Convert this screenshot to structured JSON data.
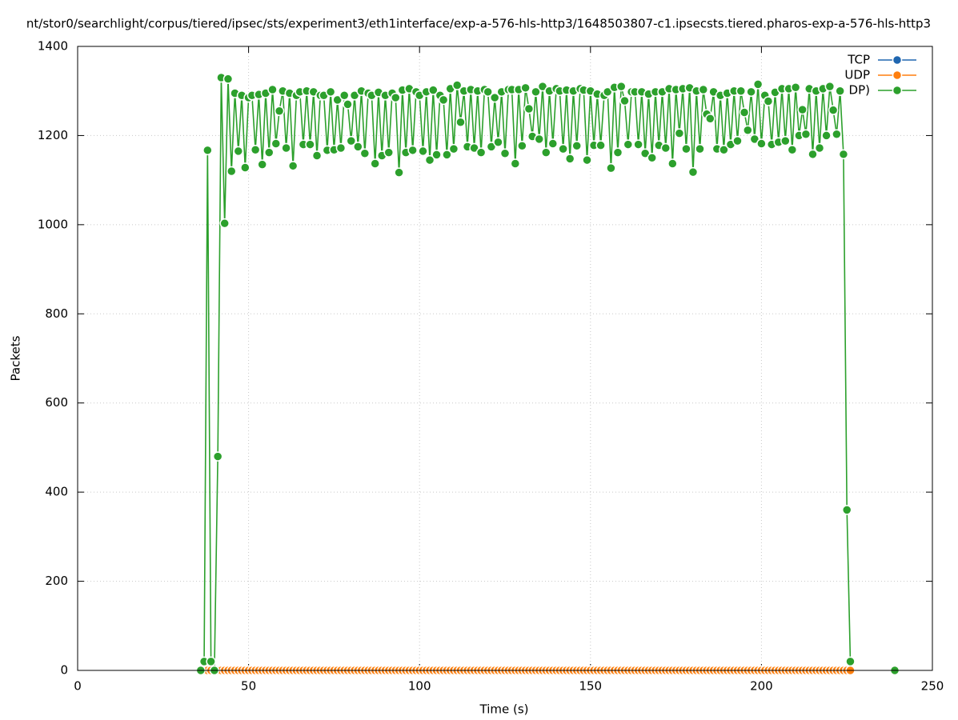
{
  "chart_data": {
    "type": "line",
    "title": "nt/stor0/searchlight/corpus/tiered/ipsec/sts/experiment3/eth1interface/exp-a-576-hls-http3/1648503807-c1.ipsecsts.tiered.pharos-exp-a-576-hls-http3",
    "x_label": "Time (s)",
    "y_label": "Packets",
    "xlim": [
      0,
      250
    ],
    "ylim": [
      0,
      1400
    ],
    "xticks": [
      0,
      50,
      100,
      150,
      200,
      250
    ],
    "yticks": [
      0,
      200,
      400,
      600,
      800,
      1000,
      1200,
      1400
    ],
    "grid": true,
    "legend": "top-right",
    "x": [
      36,
      37,
      38,
      39,
      40,
      41,
      42,
      43,
      44,
      45,
      46,
      47,
      48,
      49,
      50,
      51,
      52,
      53,
      54,
      55,
      56,
      57,
      58,
      59,
      60,
      61,
      62,
      63,
      64,
      65,
      66,
      67,
      68,
      69,
      70,
      71,
      72,
      73,
      74,
      75,
      76,
      77,
      78,
      79,
      80,
      81,
      82,
      83,
      84,
      85,
      86,
      87,
      88,
      89,
      90,
      91,
      92,
      93,
      94,
      95,
      96,
      97,
      98,
      99,
      100,
      101,
      102,
      103,
      104,
      105,
      106,
      107,
      108,
      109,
      110,
      111,
      112,
      113,
      114,
      115,
      116,
      117,
      118,
      119,
      120,
      121,
      122,
      123,
      124,
      125,
      126,
      127,
      128,
      129,
      130,
      131,
      132,
      133,
      134,
      135,
      136,
      137,
      138,
      139,
      140,
      141,
      142,
      143,
      144,
      145,
      146,
      147,
      148,
      149,
      150,
      151,
      152,
      153,
      154,
      155,
      156,
      157,
      158,
      159,
      160,
      161,
      162,
      163,
      164,
      165,
      166,
      167,
      168,
      169,
      170,
      171,
      172,
      173,
      174,
      175,
      176,
      177,
      178,
      179,
      180,
      181,
      182,
      183,
      184,
      185,
      186,
      187,
      188,
      189,
      190,
      191,
      192,
      193,
      194,
      195,
      196,
      197,
      198,
      199,
      200,
      201,
      202,
      203,
      204,
      205,
      206,
      207,
      208,
      209,
      210,
      211,
      212,
      213,
      214,
      215,
      216,
      217,
      218,
      219,
      220,
      221,
      222,
      223,
      224,
      225,
      226,
      227,
      239
    ],
    "series": [
      {
        "name": "TCP",
        "color": "#1f66b0",
        "values": [
          0,
          0,
          0,
          0,
          0,
          0,
          0,
          0,
          0,
          0,
          0,
          0,
          0,
          0,
          0,
          0,
          0,
          0,
          0,
          0,
          0,
          0,
          0,
          0,
          0,
          0,
          0,
          0,
          0,
          0,
          0,
          0,
          0,
          0,
          0,
          0,
          0,
          0,
          0,
          0,
          0,
          0,
          0,
          0,
          0,
          0,
          0,
          0,
          0,
          0,
          0,
          0,
          0,
          0,
          0,
          0,
          0,
          0,
          0,
          0,
          0,
          0,
          0,
          0,
          0,
          0,
          0,
          0,
          0,
          0,
          0,
          0,
          0,
          0,
          0,
          0,
          0,
          0,
          0,
          0,
          0,
          0,
          0,
          0,
          0,
          0,
          0,
          0,
          0,
          0,
          0,
          0,
          0,
          0,
          0,
          0,
          0,
          0,
          0,
          0,
          0,
          0,
          0,
          0,
          0,
          0,
          0,
          0,
          0,
          0,
          0,
          0,
          0,
          0,
          0,
          0,
          0,
          0,
          0,
          0,
          0,
          0,
          0,
          0,
          0,
          0,
          0,
          0,
          0,
          0,
          0,
          0,
          0,
          0,
          0,
          0,
          0,
          0,
          0,
          0,
          0,
          0,
          0,
          0,
          0,
          0,
          0,
          0,
          0,
          0,
          0,
          0,
          0,
          0,
          0,
          0,
          0,
          0,
          0,
          0,
          0,
          0,
          0,
          0,
          0,
          0,
          0,
          0,
          0,
          0,
          0,
          0,
          0,
          0,
          0,
          0,
          0,
          0,
          0,
          0,
          0,
          0,
          0,
          0,
          0,
          0,
          0,
          0,
          0,
          0,
          0,
          null,
          0
        ]
      },
      {
        "name": "UDP",
        "color": "#ff7f0e",
        "values": [
          0,
          0,
          0,
          0,
          0,
          0,
          0,
          0,
          0,
          0,
          0,
          0,
          0,
          0,
          0,
          0,
          0,
          0,
          0,
          0,
          0,
          0,
          0,
          0,
          0,
          0,
          0,
          0,
          0,
          0,
          0,
          0,
          0,
          0,
          0,
          0,
          0,
          0,
          0,
          0,
          0,
          0,
          0,
          0,
          0,
          0,
          0,
          0,
          0,
          0,
          0,
          0,
          0,
          0,
          0,
          0,
          0,
          0,
          0,
          0,
          0,
          0,
          0,
          0,
          0,
          0,
          0,
          0,
          0,
          0,
          0,
          0,
          0,
          0,
          0,
          0,
          0,
          0,
          0,
          0,
          0,
          0,
          0,
          0,
          0,
          0,
          0,
          0,
          0,
          0,
          0,
          0,
          0,
          0,
          0,
          0,
          0,
          0,
          0,
          0,
          0,
          0,
          0,
          0,
          0,
          0,
          0,
          0,
          0,
          0,
          0,
          0,
          0,
          0,
          0,
          0,
          0,
          0,
          0,
          0,
          0,
          0,
          0,
          0,
          0,
          0,
          0,
          0,
          0,
          0,
          0,
          0,
          0,
          0,
          0,
          0,
          0,
          0,
          0,
          0,
          0,
          0,
          0,
          0,
          0,
          0,
          0,
          0,
          0,
          0,
          0,
          0,
          0,
          0,
          0,
          0,
          0,
          0,
          0,
          0,
          0,
          0,
          0,
          0,
          0,
          0,
          0,
          0,
          0,
          0,
          0,
          0,
          0,
          0,
          0,
          0,
          0,
          0,
          0,
          0,
          0,
          0,
          0,
          0,
          0,
          0,
          0,
          0,
          0,
          0,
          0,
          null,
          0
        ]
      },
      {
        "name": "DP)",
        "color": "#2ca02c",
        "values": [
          0,
          20,
          1167,
          20,
          0,
          480,
          1330,
          1003,
          1327,
          1120,
          1295,
          1165,
          1290,
          1128,
          1285,
          1290,
          1168,
          1292,
          1135,
          1295,
          1162,
          1303,
          1182,
          1255,
          1300,
          1172,
          1295,
          1132,
          1290,
          1298,
          1180,
          1300,
          1180,
          1298,
          1155,
          1290,
          1290,
          1167,
          1298,
          1168,
          1280,
          1172,
          1290,
          1270,
          1188,
          1290,
          1175,
          1300,
          1160,
          1295,
          1290,
          1137,
          1297,
          1155,
          1290,
          1162,
          1295,
          1285,
          1117,
          1302,
          1162,
          1305,
          1167,
          1298,
          1290,
          1165,
          1298,
          1145,
          1302,
          1157,
          1290,
          1280,
          1157,
          1305,
          1170,
          1313,
          1230,
          1300,
          1175,
          1303,
          1172,
          1300,
          1162,
          1303,
          1298,
          1175,
          1285,
          1185,
          1298,
          1160,
          1303,
          1303,
          1137,
          1303,
          1177,
          1307,
          1260,
          1198,
          1298,
          1192,
          1310,
          1162,
          1300,
          1182,
          1305,
          1300,
          1170,
          1302,
          1148,
          1300,
          1177,
          1305,
          1302,
          1145,
          1300,
          1178,
          1293,
          1178,
          1290,
          1298,
          1127,
          1308,
          1162,
          1310,
          1278,
          1180,
          1298,
          1298,
          1180,
          1298,
          1160,
          1293,
          1150,
          1298,
          1178,
          1298,
          1172,
          1305,
          1137,
          1303,
          1205,
          1305,
          1170,
          1307,
          1118,
          1300,
          1170,
          1303,
          1248,
          1238,
          1298,
          1170,
          1290,
          1168,
          1295,
          1180,
          1300,
          1188,
          1300,
          1252,
          1212,
          1298,
          1192,
          1315,
          1182,
          1290,
          1277,
          1180,
          1297,
          1185,
          1305,
          1188,
          1305,
          1168,
          1308,
          1200,
          1258,
          1203,
          1305,
          1158,
          1300,
          1172,
          1305,
          1200,
          1310,
          1257,
          1203,
          1300,
          1158,
          360,
          20,
          null,
          0
        ]
      }
    ]
  }
}
